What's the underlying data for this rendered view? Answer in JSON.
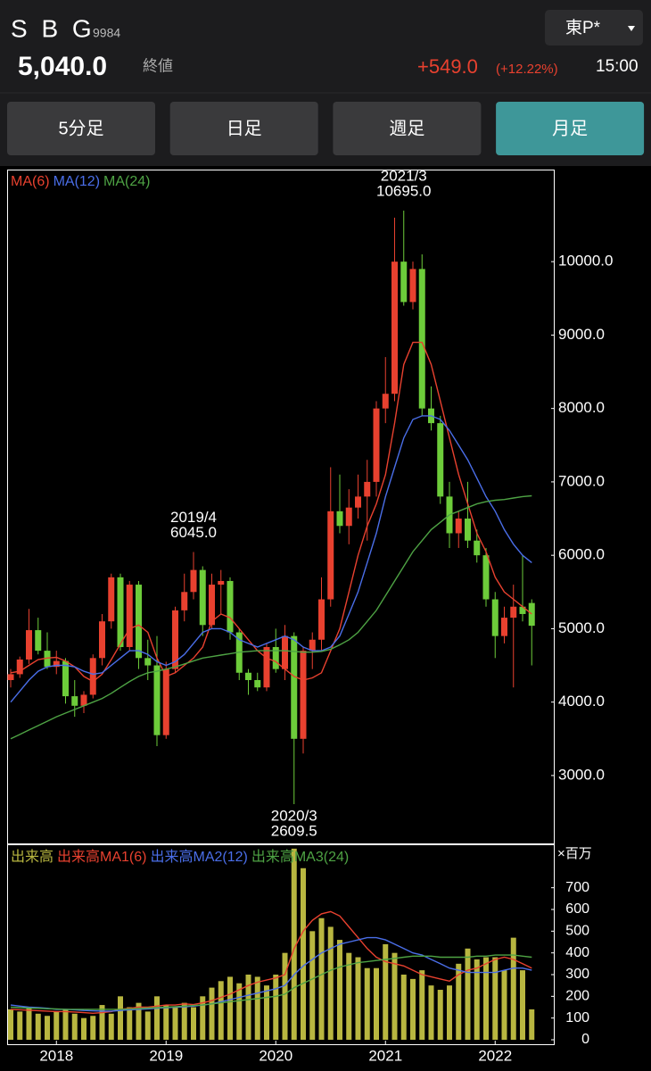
{
  "header": {
    "name": "S B G",
    "code": "9984",
    "price": "5,040.0",
    "price_label": "終値",
    "change": "+549.0",
    "change_pct": "(+12.22%)",
    "time": "15:00",
    "market": "東P*"
  },
  "tabs": {
    "items": [
      "5分足",
      "日足",
      "週足",
      "月足"
    ],
    "active": "月足"
  },
  "chart_data": [
    {
      "type": "candlestick",
      "up_color": "#e8412f",
      "down_color": "#6dcc3a",
      "ylim": [
        2075,
        11230
      ],
      "yticks": [
        {
          "value": 3000,
          "label": "3000.0"
        },
        {
          "value": 4000,
          "label": "4000.0"
        },
        {
          "value": 5000,
          "label": "5000.0"
        },
        {
          "value": 6000,
          "label": "6000.0"
        },
        {
          "value": 7000,
          "label": "7000.0"
        },
        {
          "value": 8000,
          "label": "8000.0"
        },
        {
          "value": 9000,
          "label": "9000.0"
        },
        {
          "value": 10000,
          "label": "10000.0"
        }
      ],
      "open": [
        4300,
        4380,
        4580,
        4980,
        4700,
        4480,
        4560,
        4080,
        3950,
        4100,
        4600,
        5100,
        5700,
        4750,
        5600,
        4600,
        4500,
        3550,
        4450,
        5250,
        5500,
        5800,
        5050,
        5600,
        5650,
        4950,
        4400,
        4300,
        4200,
        4750,
        4450,
        4900,
        3500,
        4700,
        4850,
        5400,
        6600,
        6400,
        6650,
        6800,
        7000,
        8000,
        8200,
        10000,
        9450,
        9900,
        8000,
        7800,
        6800,
        6300,
        6500,
        6200,
        6000,
        5400,
        4900,
        5150,
        5300,
        5350
      ],
      "high": [
        4450,
        4620,
        5270,
        5150,
        4950,
        4700,
        4600,
        4300,
        4150,
        4650,
        5200,
        5750,
        5750,
        5650,
        5650,
        4850,
        4900,
        4550,
        5300,
        5750,
        6045,
        5850,
        5750,
        5800,
        5700,
        5000,
        4450,
        4400,
        4800,
        5000,
        5050,
        4950,
        4750,
        4950,
        5700,
        7200,
        7100,
        6900,
        7100,
        7300,
        8100,
        8700,
        10600,
        10695,
        10000,
        10100,
        8300,
        7900,
        7000,
        6600,
        7000,
        6350,
        6100,
        5500,
        5300,
        5600,
        6000,
        5400
      ],
      "low": [
        4200,
        4330,
        4520,
        4650,
        4450,
        4380,
        3980,
        3800,
        3850,
        4050,
        4500,
        5000,
        4700,
        4700,
        4450,
        4300,
        3400,
        3500,
        4400,
        5100,
        5400,
        4900,
        5000,
        5200,
        4850,
        4300,
        4100,
        4150,
        4150,
        4400,
        4300,
        2609.5,
        3300,
        4450,
        4700,
        5300,
        6300,
        6150,
        6500,
        6200,
        6800,
        7800,
        8100,
        9400,
        9350,
        7900,
        7700,
        6700,
        6100,
        6100,
        6100,
        5900,
        5300,
        4600,
        4800,
        4200,
        5100,
        4500
      ],
      "close": [
        4380,
        4580,
        4980,
        4700,
        4480,
        4560,
        4080,
        3950,
        4100,
        4600,
        5100,
        5700,
        4750,
        5600,
        4600,
        4500,
        3550,
        4450,
        5250,
        5500,
        5800,
        5050,
        5600,
        5650,
        4950,
        4400,
        4300,
        4200,
        4750,
        4450,
        4900,
        3500,
        4700,
        4850,
        5400,
        6600,
        6400,
        6650,
        6800,
        7000,
        8000,
        8200,
        10000,
        9450,
        9900,
        8000,
        7800,
        6800,
        6300,
        6500,
        6200,
        6000,
        5400,
        4900,
        5150,
        5300,
        5200,
        5040
      ],
      "series": [
        {
          "name": "MA(6)",
          "color": "#e8412f",
          "values": [
            4400,
            4420,
            4500,
            4580,
            4600,
            4610,
            4560,
            4480,
            4350,
            4280,
            4380,
            4580,
            4790,
            5000,
            5050,
            4950,
            4600,
            4350,
            4400,
            4500,
            4600,
            4750,
            5100,
            5200,
            5150,
            5000,
            4850,
            4700,
            4600,
            4550,
            4450,
            4350,
            4300,
            4330,
            4400,
            4700,
            5000,
            5500,
            6000,
            6400,
            6700,
            7100,
            7800,
            8600,
            8900,
            8900,
            8600,
            8100,
            7600,
            7100,
            6700,
            6300,
            6050,
            5700,
            5500,
            5400,
            5300,
            5200
          ]
        },
        {
          "name": "MA(12)",
          "color": "#4a6ee8",
          "values": [
            4000,
            4150,
            4300,
            4420,
            4480,
            4500,
            4500,
            4480,
            4420,
            4380,
            4400,
            4500,
            4600,
            4700,
            4700,
            4650,
            4550,
            4500,
            4550,
            4650,
            4800,
            4950,
            5000,
            5000,
            4950,
            4850,
            4800,
            4750,
            4800,
            4850,
            4900,
            4850,
            4750,
            4700,
            4700,
            4750,
            4900,
            5200,
            5500,
            5900,
            6300,
            6800,
            7200,
            7600,
            7850,
            7900,
            7900,
            7850,
            7700,
            7500,
            7300,
            7050,
            6800,
            6600,
            6350,
            6150,
            6000,
            5900
          ]
        },
        {
          "name": "MA(24)",
          "color": "#4ea344",
          "values": [
            3500,
            3560,
            3620,
            3680,
            3740,
            3800,
            3850,
            3900,
            3950,
            4000,
            4050,
            4120,
            4200,
            4280,
            4350,
            4400,
            4420,
            4450,
            4480,
            4520,
            4560,
            4600,
            4620,
            4640,
            4660,
            4680,
            4690,
            4700,
            4700,
            4700,
            4700,
            4690,
            4680,
            4680,
            4690,
            4720,
            4780,
            4850,
            4950,
            5100,
            5250,
            5450,
            5650,
            5850,
            6050,
            6200,
            6350,
            6450,
            6550,
            6600,
            6650,
            6700,
            6730,
            6750,
            6760,
            6780,
            6800,
            6810
          ]
        }
      ],
      "annotations": [
        {
          "label": "2021/3",
          "value": 10695,
          "value_label": "10695.0"
        },
        {
          "label": "2019/4",
          "value": 6045,
          "value_label": "6045.0"
        },
        {
          "label": "2020/3",
          "value": 2609.5,
          "value_label": "2609.5"
        }
      ]
    },
    {
      "type": "bar",
      "unit": "×百万",
      "categories": [
        null,
        null,
        null,
        null,
        null,
        "2018",
        null,
        null,
        null,
        null,
        null,
        null,
        null,
        null,
        null,
        null,
        null,
        "2019",
        null,
        null,
        null,
        null,
        null,
        null,
        null,
        null,
        null,
        null,
        null,
        "2020",
        null,
        null,
        null,
        null,
        null,
        null,
        null,
        null,
        null,
        null,
        null,
        "2021",
        null,
        null,
        null,
        null,
        null,
        null,
        null,
        null,
        null,
        null,
        null,
        "2022",
        null,
        null,
        null,
        null
      ],
      "ylim": [
        0,
        900
      ],
      "yticks": [
        0,
        100,
        200,
        300,
        400,
        500,
        600,
        700
      ],
      "name": "出来高",
      "color": "#b8b640",
      "values": [
        140,
        130,
        150,
        120,
        110,
        130,
        140,
        120,
        100,
        110,
        160,
        120,
        200,
        150,
        170,
        130,
        200,
        160,
        150,
        170,
        150,
        200,
        240,
        270,
        290,
        260,
        300,
        290,
        250,
        300,
        400,
        880,
        790,
        500,
        560,
        520,
        460,
        400,
        380,
        330,
        330,
        440,
        400,
        300,
        280,
        320,
        250,
        230,
        250,
        350,
        420,
        370,
        380,
        380,
        320,
        470,
        320,
        140
      ],
      "series": [
        {
          "name": "出来高MA1(6)",
          "color": "#e8412f",
          "values": [
            140,
            138,
            136,
            134,
            132,
            130,
            130,
            128,
            125,
            122,
            125,
            130,
            140,
            145,
            150,
            150,
            155,
            160,
            160,
            165,
            162,
            170,
            180,
            195,
            210,
            230,
            250,
            265,
            275,
            285,
            300,
            420,
            500,
            550,
            580,
            590,
            570,
            520,
            470,
            420,
            380,
            360,
            350,
            340,
            320,
            300,
            290,
            280,
            270,
            300,
            320,
            330,
            350,
            370,
            380,
            370,
            350,
            330
          ]
        },
        {
          "name": "出来高MA2(12)",
          "color": "#4a6ee8",
          "values": [
            160,
            155,
            150,
            148,
            145,
            140,
            140,
            138,
            135,
            133,
            132,
            132,
            135,
            138,
            140,
            142,
            145,
            148,
            150,
            152,
            155,
            160,
            165,
            175,
            185,
            195,
            205,
            215,
            225,
            235,
            250,
            300,
            340,
            370,
            400,
            420,
            440,
            450,
            460,
            470,
            470,
            460,
            440,
            420,
            400,
            390,
            370,
            350,
            330,
            320,
            310,
            310,
            310,
            310,
            320,
            330,
            330,
            320
          ]
        },
        {
          "name": "出来高MA3(24)",
          "color": "#4ea344",
          "values": [
            150,
            148,
            146,
            145,
            143,
            142,
            140,
            140,
            140,
            140,
            140,
            140,
            140,
            142,
            144,
            146,
            148,
            150,
            152,
            155,
            158,
            160,
            165,
            170,
            175,
            180,
            185,
            190,
            195,
            200,
            210,
            240,
            260,
            280,
            300,
            320,
            335,
            345,
            355,
            360,
            365,
            370,
            375,
            380,
            385,
            385,
            385,
            380,
            380,
            380,
            380,
            385,
            385,
            390,
            390,
            390,
            385,
            380
          ]
        }
      ]
    }
  ]
}
